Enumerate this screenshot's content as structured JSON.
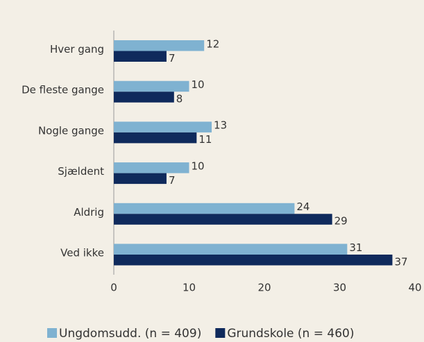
{
  "chart_data": {
    "type": "hbar",
    "categories": [
      "Hver gang",
      "De fleste gange",
      "Nogle gange",
      "Sjældent",
      "Aldrig",
      "Ved ikke"
    ],
    "series": [
      {
        "name": "Ungdomsudd. (n = 409)",
        "color": "#7fb2d1",
        "values": [
          12,
          10,
          13,
          10,
          24,
          31
        ]
      },
      {
        "name": "Grundskole (n = 460)",
        "color": "#0f2a5c",
        "values": [
          7,
          8,
          11,
          7,
          29,
          37
        ]
      }
    ],
    "xlim": [
      0,
      40
    ],
    "xticks": [
      0,
      10,
      20,
      30,
      40
    ],
    "grid": false,
    "legend": "bottom"
  }
}
